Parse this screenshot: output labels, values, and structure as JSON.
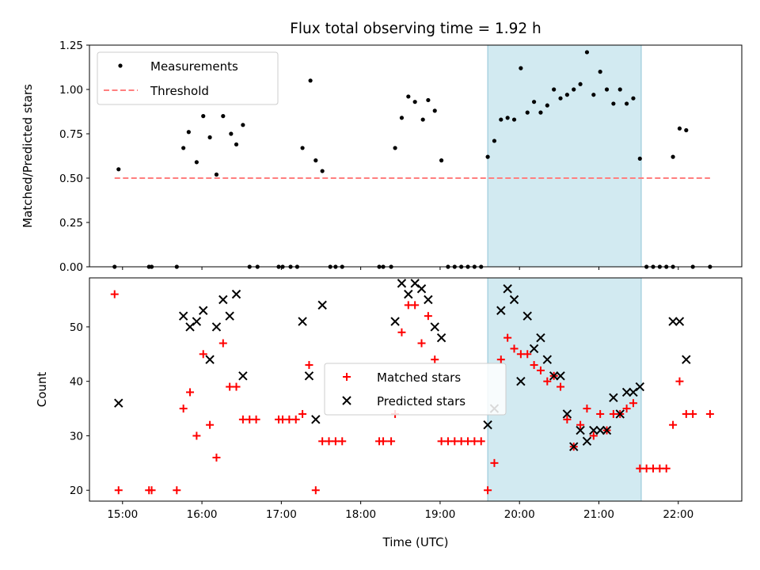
{
  "chart_data": {
    "type": "scatter",
    "title": "Flux total observing time = 1.92 h",
    "xlabel": "Time (UTC)",
    "x_ticks": [
      "15:00",
      "16:00",
      "17:00",
      "18:00",
      "19:00",
      "20:00",
      "21:00",
      "22:00"
    ],
    "xlim": [
      "14:35",
      "22:48"
    ],
    "highlight_span": [
      "19:36",
      "21:32"
    ],
    "highlight_color": "#add8e6",
    "panels": [
      {
        "ylabel": "Matched/Predicted stars",
        "ylim": [
          0.0,
          1.25
        ],
        "y_ticks": [
          "0.00",
          "0.25",
          "0.50",
          "0.75",
          "1.00",
          "1.25"
        ],
        "legend": [
          "Measurements",
          "Threshold"
        ],
        "legend_position": "upper left",
        "series": [
          {
            "name": "Measurements",
            "marker": "dot",
            "color": "#000000",
            "points": [
              [
                "14:54",
                0.0
              ],
              [
                "14:57",
                0.55
              ],
              [
                "15:20",
                0.0
              ],
              [
                "15:22",
                0.0
              ],
              [
                "15:41",
                0.0
              ],
              [
                "15:46",
                0.67
              ],
              [
                "15:50",
                0.76
              ],
              [
                "15:56",
                0.59
              ],
              [
                "16:01",
                0.85
              ],
              [
                "16:06",
                0.73
              ],
              [
                "16:11",
                0.52
              ],
              [
                "16:16",
                0.85
              ],
              [
                "16:22",
                0.75
              ],
              [
                "16:26",
                0.69
              ],
              [
                "16:31",
                0.8
              ],
              [
                "16:36",
                0.0
              ],
              [
                "16:42",
                0.0
              ],
              [
                "16:58",
                0.0
              ],
              [
                "17:01",
                0.0
              ],
              [
                "17:07",
                0.0
              ],
              [
                "17:12",
                0.0
              ],
              [
                "17:16",
                0.67
              ],
              [
                "17:22",
                1.05
              ],
              [
                "17:26",
                0.6
              ],
              [
                "17:31",
                0.54
              ],
              [
                "17:37",
                0.0
              ],
              [
                "17:41",
                0.0
              ],
              [
                "17:46",
                0.0
              ],
              [
                "18:14",
                0.0
              ],
              [
                "18:17",
                0.0
              ],
              [
                "18:23",
                0.0
              ],
              [
                "18:26",
                0.67
              ],
              [
                "18:31",
                0.84
              ],
              [
                "18:36",
                0.96
              ],
              [
                "18:41",
                0.93
              ],
              [
                "18:47",
                0.83
              ],
              [
                "18:51",
                0.94
              ],
              [
                "18:56",
                0.88
              ],
              [
                "19:01",
                0.6
              ],
              [
                "19:06",
                0.0
              ],
              [
                "19:11",
                0.0
              ],
              [
                "19:16",
                0.0
              ],
              [
                "19:21",
                0.0
              ],
              [
                "19:26",
                0.0
              ],
              [
                "19:31",
                0.0
              ],
              [
                "19:36",
                0.62
              ],
              [
                "19:41",
                0.71
              ],
              [
                "19:46",
                0.83
              ],
              [
                "19:51",
                0.84
              ],
              [
                "19:56",
                0.83
              ],
              [
                "20:01",
                1.12
              ],
              [
                "20:06",
                0.87
              ],
              [
                "20:11",
                0.93
              ],
              [
                "20:16",
                0.87
              ],
              [
                "20:21",
                0.91
              ],
              [
                "20:26",
                1.0
              ],
              [
                "20:31",
                0.95
              ],
              [
                "20:36",
                0.97
              ],
              [
                "20:41",
                1.0
              ],
              [
                "20:46",
                1.03
              ],
              [
                "20:51",
                1.21
              ],
              [
                "20:56",
                0.97
              ],
              [
                "21:01",
                1.1
              ],
              [
                "21:06",
                1.0
              ],
              [
                "21:11",
                0.92
              ],
              [
                "21:16",
                1.0
              ],
              [
                "21:21",
                0.92
              ],
              [
                "21:26",
                0.95
              ],
              [
                "21:31",
                0.61
              ],
              [
                "21:36",
                0.0
              ],
              [
                "21:41",
                0.0
              ],
              [
                "21:46",
                0.0
              ],
              [
                "21:51",
                0.0
              ],
              [
                "21:56",
                0.0
              ],
              [
                "21:56",
                0.62
              ],
              [
                "22:01",
                0.78
              ],
              [
                "22:06",
                0.77
              ],
              [
                "22:11",
                0.0
              ],
              [
                "22:24",
                0.0
              ]
            ]
          },
          {
            "name": "Threshold",
            "marker": "dashed-line",
            "color": "#ff7f7f",
            "points": [
              [
                "14:54",
                0.5
              ],
              [
                "22:24",
                0.5
              ]
            ]
          }
        ]
      },
      {
        "ylabel": "Count",
        "ylim": [
          18,
          59
        ],
        "y_ticks": [
          "20",
          "30",
          "40",
          "50"
        ],
        "legend": [
          "Matched stars",
          "Predicted stars"
        ],
        "legend_position": "center",
        "series": [
          {
            "name": "Matched stars",
            "marker": "plus",
            "color": "#ff0000",
            "points": [
              [
                "14:54",
                56
              ],
              [
                "14:57",
                20
              ],
              [
                "15:20",
                20
              ],
              [
                "15:22",
                20
              ],
              [
                "15:41",
                20
              ],
              [
                "15:46",
                35
              ],
              [
                "15:51",
                38
              ],
              [
                "15:56",
                30
              ],
              [
                "16:01",
                45
              ],
              [
                "16:06",
                32
              ],
              [
                "16:11",
                26
              ],
              [
                "16:16",
                47
              ],
              [
                "16:21",
                39
              ],
              [
                "16:26",
                39
              ],
              [
                "16:31",
                33
              ],
              [
                "16:36",
                33
              ],
              [
                "16:41",
                33
              ],
              [
                "16:58",
                33
              ],
              [
                "17:01",
                33
              ],
              [
                "17:06",
                33
              ],
              [
                "17:11",
                33
              ],
              [
                "17:16",
                34
              ],
              [
                "17:21",
                43
              ],
              [
                "17:26",
                20
              ],
              [
                "17:31",
                29
              ],
              [
                "17:36",
                29
              ],
              [
                "17:41",
                29
              ],
              [
                "17:46",
                29
              ],
              [
                "18:14",
                29
              ],
              [
                "18:17",
                29
              ],
              [
                "18:23",
                29
              ],
              [
                "18:26",
                34
              ],
              [
                "18:31",
                49
              ],
              [
                "18:36",
                54
              ],
              [
                "18:41",
                54
              ],
              [
                "18:46",
                47
              ],
              [
                "18:51",
                52
              ],
              [
                "18:56",
                44
              ],
              [
                "19:01",
                29
              ],
              [
                "19:06",
                29
              ],
              [
                "19:11",
                29
              ],
              [
                "19:16",
                29
              ],
              [
                "19:21",
                29
              ],
              [
                "19:26",
                29
              ],
              [
                "19:31",
                29
              ],
              [
                "19:36",
                20
              ],
              [
                "19:41",
                25
              ],
              [
                "19:46",
                44
              ],
              [
                "19:51",
                48
              ],
              [
                "19:56",
                46
              ],
              [
                "20:01",
                45
              ],
              [
                "20:06",
                45
              ],
              [
                "20:11",
                43
              ],
              [
                "20:16",
                42
              ],
              [
                "20:21",
                40
              ],
              [
                "20:26",
                41
              ],
              [
                "20:31",
                39
              ],
              [
                "20:36",
                33
              ],
              [
                "20:41",
                28
              ],
              [
                "20:46",
                32
              ],
              [
                "20:51",
                35
              ],
              [
                "20:56",
                30
              ],
              [
                "21:01",
                34
              ],
              [
                "21:06",
                31
              ],
              [
                "21:11",
                34
              ],
              [
                "21:16",
                34
              ],
              [
                "21:21",
                35
              ],
              [
                "21:26",
                36
              ],
              [
                "21:31",
                24
              ],
              [
                "21:36",
                24
              ],
              [
                "21:41",
                24
              ],
              [
                "21:46",
                24
              ],
              [
                "21:51",
                24
              ],
              [
                "21:56",
                32
              ],
              [
                "22:01",
                40
              ],
              [
                "22:06",
                34
              ],
              [
                "22:11",
                34
              ],
              [
                "22:24",
                34
              ]
            ]
          },
          {
            "name": "Predicted stars",
            "marker": "x",
            "color": "#000000",
            "points": [
              [
                "14:57",
                36
              ],
              [
                "15:46",
                52
              ],
              [
                "15:51",
                50
              ],
              [
                "15:56",
                51
              ],
              [
                "16:01",
                53
              ],
              [
                "16:06",
                44
              ],
              [
                "16:11",
                50
              ],
              [
                "16:16",
                55
              ],
              [
                "16:21",
                52
              ],
              [
                "16:26",
                56
              ],
              [
                "16:31",
                41
              ],
              [
                "17:16",
                51
              ],
              [
                "17:21",
                41
              ],
              [
                "17:26",
                33
              ],
              [
                "17:31",
                54
              ],
              [
                "18:26",
                51
              ],
              [
                "18:31",
                58
              ],
              [
                "18:36",
                56
              ],
              [
                "18:41",
                58
              ],
              [
                "18:46",
                57
              ],
              [
                "18:51",
                55
              ],
              [
                "18:56",
                50
              ],
              [
                "19:01",
                48
              ],
              [
                "19:36",
                32
              ],
              [
                "19:41",
                35
              ],
              [
                "19:46",
                53
              ],
              [
                "19:51",
                57
              ],
              [
                "19:56",
                55
              ],
              [
                "20:01",
                40
              ],
              [
                "20:06",
                52
              ],
              [
                "20:11",
                46
              ],
              [
                "20:16",
                48
              ],
              [
                "20:21",
                44
              ],
              [
                "20:26",
                41
              ],
              [
                "20:31",
                41
              ],
              [
                "20:36",
                34
              ],
              [
                "20:41",
                28
              ],
              [
                "20:46",
                31
              ],
              [
                "20:51",
                29
              ],
              [
                "20:56",
                31
              ],
              [
                "21:01",
                31
              ],
              [
                "21:06",
                31
              ],
              [
                "21:11",
                37
              ],
              [
                "21:16",
                34
              ],
              [
                "21:21",
                38
              ],
              [
                "21:26",
                38
              ],
              [
                "21:31",
                39
              ],
              [
                "21:56",
                51
              ],
              [
                "22:01",
                51
              ],
              [
                "22:06",
                44
              ]
            ]
          }
        ]
      }
    ]
  }
}
